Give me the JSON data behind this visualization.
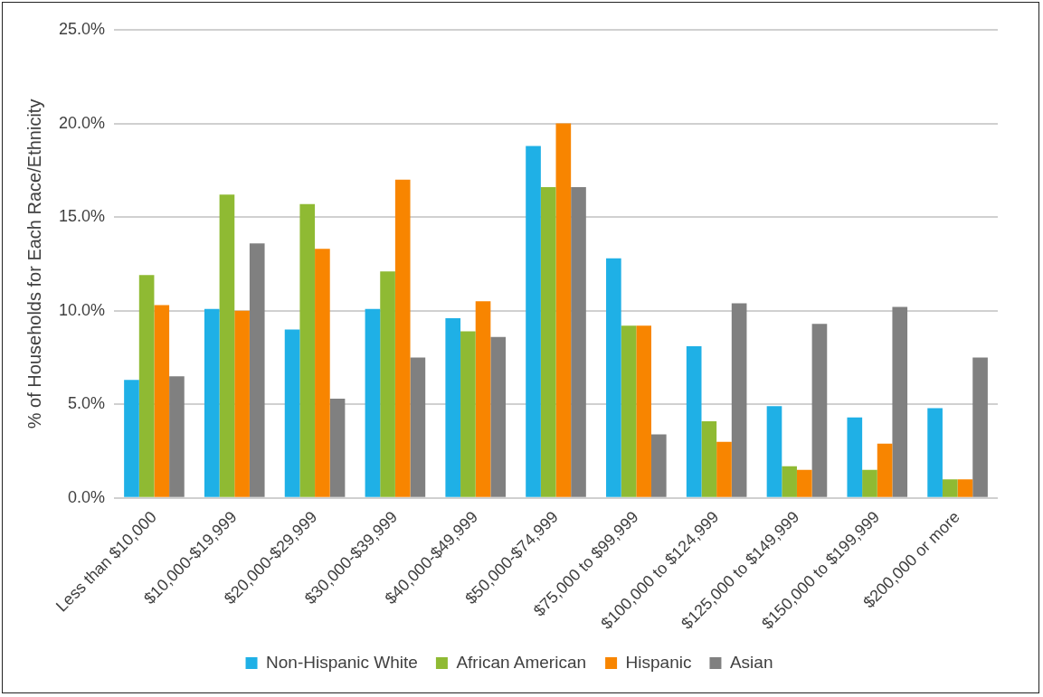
{
  "chart_data": {
    "type": "bar",
    "ylabel": "% of Households for Each Race/Ethnicity",
    "categories": [
      "Less than $10,000",
      "$10,000-$19,999",
      "$20,000-$29,999",
      "$30,000-$39,999",
      "$40,000-$49,999",
      "$50,000-$74,999",
      "$75,000 to $99,999",
      "$100,000 to $124,999",
      "$125,000 to $149,999",
      "$150,000 to $199,999",
      "$200,000 or more"
    ],
    "series": [
      {
        "name": "Non-Hispanic White",
        "color": "#1fb0e6",
        "values": [
          6.3,
          10.1,
          9.0,
          10.1,
          9.6,
          18.8,
          12.8,
          8.1,
          4.9,
          4.3,
          4.8
        ]
      },
      {
        "name": "African American",
        "color": "#8fba33",
        "values": [
          11.9,
          16.2,
          15.7,
          12.1,
          8.9,
          16.6,
          9.2,
          4.1,
          1.7,
          1.5,
          1.0
        ]
      },
      {
        "name": "Hispanic",
        "color": "#f88500",
        "values": [
          10.3,
          10.0,
          13.3,
          17.0,
          10.5,
          20.0,
          9.2,
          3.0,
          1.5,
          2.9,
          1.0
        ]
      },
      {
        "name": "Asian",
        "color": "#808080",
        "values": [
          6.5,
          13.6,
          5.3,
          7.5,
          8.6,
          16.6,
          3.4,
          10.4,
          9.3,
          10.2,
          7.5
        ]
      }
    ],
    "ylim": [
      0,
      25
    ],
    "yticks": [
      {
        "value": 0,
        "label": "0.0%"
      },
      {
        "value": 5,
        "label": "5.0%"
      },
      {
        "value": 10,
        "label": "10.0%"
      },
      {
        "value": 15,
        "label": "15.0%"
      },
      {
        "value": 20,
        "label": "20.0%"
      },
      {
        "value": 25,
        "label": "25.0%"
      }
    ],
    "grid": "y",
    "legend": "bottom"
  }
}
